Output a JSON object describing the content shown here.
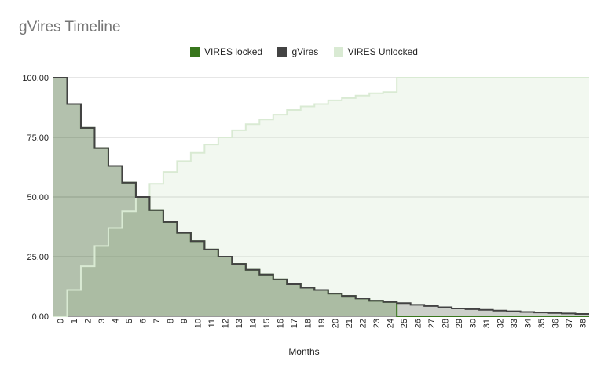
{
  "chart_data": {
    "type": "area",
    "title": "gVires Timeline",
    "xlabel": "Months",
    "ylabel": "",
    "ylim": [
      0,
      100
    ],
    "yticks": [
      "0.00",
      "25.00",
      "50.00",
      "75.00",
      "100.00"
    ],
    "grid": true,
    "legend_position": "top",
    "x": [
      0,
      1,
      2,
      3,
      4,
      5,
      6,
      7,
      8,
      9,
      10,
      11,
      12,
      13,
      14,
      15,
      16,
      17,
      18,
      19,
      20,
      21,
      22,
      23,
      24,
      25,
      26,
      27,
      28,
      29,
      30,
      31,
      32,
      33,
      34,
      35,
      36,
      37,
      38
    ],
    "series": [
      {
        "name": "VIRES locked",
        "color": "#38761d",
        "values": [
          100,
          89,
          79,
          70.5,
          63,
          56,
          50,
          44.5,
          39.5,
          35,
          31.5,
          28,
          25,
          22,
          19.5,
          17.5,
          15.5,
          13.5,
          12,
          11,
          9.5,
          8.5,
          7.5,
          6.5,
          6,
          0,
          0,
          0,
          0,
          0,
          0,
          0,
          0,
          0,
          0,
          0,
          0,
          0,
          0
        ]
      },
      {
        "name": "gVires",
        "color": "#434343",
        "values": [
          100,
          89,
          79,
          70.5,
          63,
          56,
          50,
          44.5,
          39.5,
          35,
          31.5,
          28,
          25,
          22,
          19.5,
          17.5,
          15.5,
          13.5,
          12,
          11,
          9.5,
          8.5,
          7.5,
          6.5,
          6,
          5.5,
          4.8,
          4.3,
          3.8,
          3.3,
          3,
          2.7,
          2.4,
          2.1,
          1.8,
          1.6,
          1.4,
          1.2,
          1
        ]
      },
      {
        "name": "VIRES Unlocked",
        "color": "#d9ead3",
        "values": [
          0,
          11,
          21,
          29.5,
          37,
          44,
          50,
          55.5,
          60.5,
          65,
          68.5,
          72,
          75,
          78,
          80.5,
          82.5,
          84.5,
          86.5,
          88,
          89,
          90.5,
          91.5,
          92.5,
          93.5,
          94,
          100,
          100,
          100,
          100,
          100,
          100,
          100,
          100,
          100,
          100,
          100,
          100,
          100,
          100
        ]
      }
    ]
  }
}
